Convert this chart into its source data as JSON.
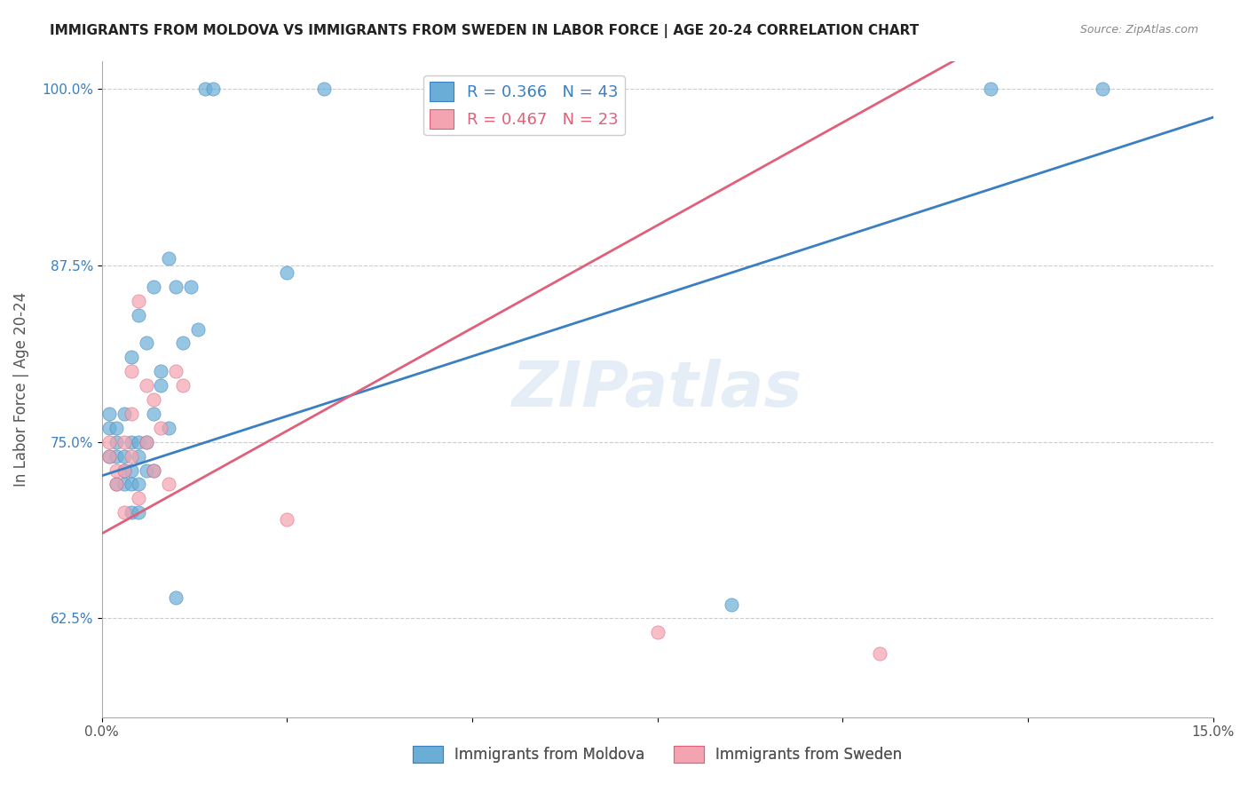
{
  "title": "IMMIGRANTS FROM MOLDOVA VS IMMIGRANTS FROM SWEDEN IN LABOR FORCE | AGE 20-24 CORRELATION CHART",
  "source_text": "Source: ZipAtlas.com",
  "xlabel": "",
  "ylabel": "In Labor Force | Age 20-24",
  "xlim": [
    0.0,
    0.15
  ],
  "ylim": [
    0.555,
    1.02
  ],
  "xticks": [
    0.0,
    0.025,
    0.05,
    0.075,
    0.1,
    0.125,
    0.15
  ],
  "xticklabels": [
    "0.0%",
    "",
    "",
    "",
    "",
    "",
    "15.0%"
  ],
  "yticks": [
    0.625,
    0.75,
    0.875,
    1.0
  ],
  "yticklabels": [
    "62.5%",
    "75.0%",
    "87.5%",
    "100.0%"
  ],
  "watermark": "ZIPatlas",
  "legend_blue_label": "R = 0.366   N = 43",
  "legend_pink_label": "R = 0.467   N = 23",
  "blue_color": "#6aaed6",
  "pink_color": "#f4a3b0",
  "blue_line_color": "#3a7fc1",
  "pink_line_color": "#e0607a",
  "moldova_legend": "Immigrants from Moldova",
  "sweden_legend": "Immigrants from Sweden",
  "moldova_x": [
    0.001,
    0.001,
    0.001,
    0.002,
    0.002,
    0.002,
    0.002,
    0.003,
    0.003,
    0.003,
    0.003,
    0.004,
    0.004,
    0.004,
    0.004,
    0.004,
    0.005,
    0.005,
    0.005,
    0.005,
    0.005,
    0.006,
    0.006,
    0.006,
    0.007,
    0.007,
    0.007,
    0.008,
    0.008,
    0.009,
    0.009,
    0.01,
    0.01,
    0.011,
    0.012,
    0.013,
    0.014,
    0.015,
    0.025,
    0.03,
    0.085,
    0.12,
    0.135
  ],
  "moldova_y": [
    0.74,
    0.76,
    0.77,
    0.72,
    0.74,
    0.75,
    0.76,
    0.72,
    0.73,
    0.74,
    0.77,
    0.7,
    0.72,
    0.73,
    0.75,
    0.81,
    0.7,
    0.72,
    0.74,
    0.75,
    0.84,
    0.73,
    0.75,
    0.82,
    0.73,
    0.77,
    0.86,
    0.79,
    0.8,
    0.76,
    0.88,
    0.64,
    0.86,
    0.82,
    0.86,
    0.83,
    1.0,
    1.0,
    0.87,
    1.0,
    0.635,
    1.0,
    1.0
  ],
  "sweden_x": [
    0.001,
    0.001,
    0.002,
    0.002,
    0.003,
    0.003,
    0.003,
    0.004,
    0.004,
    0.004,
    0.005,
    0.005,
    0.006,
    0.006,
    0.007,
    0.007,
    0.008,
    0.009,
    0.01,
    0.011,
    0.025,
    0.075,
    0.105
  ],
  "sweden_y": [
    0.74,
    0.75,
    0.72,
    0.73,
    0.7,
    0.73,
    0.75,
    0.74,
    0.77,
    0.8,
    0.71,
    0.85,
    0.75,
    0.79,
    0.73,
    0.78,
    0.76,
    0.72,
    0.8,
    0.79,
    0.695,
    0.615,
    0.6
  ],
  "blue_trendline_x": [
    0.0,
    0.15
  ],
  "blue_trendline_y": [
    0.726,
    0.98
  ],
  "pink_trendline_x": [
    0.0,
    0.115
  ],
  "pink_trendline_y": [
    0.685,
    1.02
  ]
}
